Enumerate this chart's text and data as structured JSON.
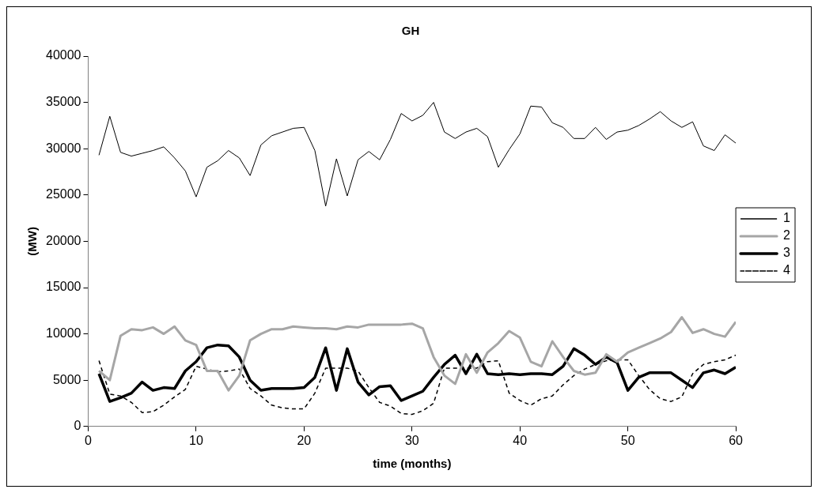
{
  "chart_data": {
    "type": "line",
    "title": "GH",
    "xlabel": "time (months)",
    "ylabel": "(MW)",
    "x": [
      1,
      2,
      3,
      4,
      5,
      6,
      7,
      8,
      9,
      10,
      11,
      12,
      13,
      14,
      15,
      16,
      17,
      18,
      19,
      20,
      21,
      22,
      23,
      24,
      25,
      26,
      27,
      28,
      29,
      30,
      31,
      32,
      33,
      34,
      35,
      36,
      37,
      38,
      39,
      40,
      41,
      42,
      43,
      44,
      45,
      46,
      47,
      48,
      49,
      50,
      51,
      52,
      53,
      54,
      55,
      56,
      57,
      58,
      59,
      60
    ],
    "xlim": [
      0,
      60
    ],
    "xticks": [
      0,
      10,
      20,
      30,
      40,
      50,
      60
    ],
    "ylim": [
      0,
      40000
    ],
    "yticks": [
      0,
      5000,
      10000,
      15000,
      20000,
      25000,
      30000,
      35000,
      40000
    ],
    "grid": false,
    "legend": "right",
    "marker": "none",
    "series": [
      {
        "name": "1",
        "color": "#000000",
        "line_style": "solid",
        "values": [
          29300,
          33500,
          29600,
          29200,
          29500,
          29800,
          30200,
          29000,
          27600,
          24800,
          28000,
          28700,
          29800,
          29000,
          27100,
          30400,
          31400,
          31800,
          32200,
          32300,
          29800,
          23800,
          28900,
          24900,
          28800,
          29700,
          28800,
          31000,
          33800,
          33000,
          33600,
          35000,
          31800,
          31100,
          31800,
          32200,
          31300,
          28000,
          29900,
          31600,
          34600,
          34500,
          32800,
          32300,
          31100,
          31100,
          32300,
          31000,
          31800,
          32000,
          32500,
          33200,
          34000,
          33000,
          32300,
          32900,
          30300,
          29800,
          31500,
          30600
        ]
      },
      {
        "name": "2",
        "color": "#a6a6a6",
        "line_style": "solid",
        "values": [
          6000,
          5000,
          9800,
          10500,
          10400,
          10700,
          10000,
          10800,
          9300,
          8800,
          6000,
          6000,
          3900,
          5500,
          9300,
          10000,
          10500,
          10500,
          10800,
          10700,
          10600,
          10600,
          10500,
          10800,
          10700,
          11000,
          11000,
          11000,
          11000,
          11100,
          10600,
          7500,
          5500,
          4600,
          7800,
          5800,
          8000,
          9000,
          10300,
          9600,
          7000,
          6500,
          9200,
          7500,
          6000,
          5600,
          5800,
          7800,
          7000,
          8000,
          8500,
          9000,
          9500,
          10200,
          11800,
          10100,
          10500,
          10000,
          9700,
          11300
        ]
      },
      {
        "name": "3",
        "color": "#000000",
        "line_style": "solid",
        "values": [
          5700,
          2700,
          3100,
          3600,
          4800,
          3900,
          4200,
          4100,
          6000,
          7000,
          8500,
          8800,
          8700,
          7500,
          5000,
          3900,
          4100,
          4100,
          4100,
          4200,
          5300,
          8500,
          3900,
          8400,
          4800,
          3400,
          4300,
          4400,
          2800,
          3300,
          3800,
          5300,
          6700,
          7700,
          5700,
          7800,
          5700,
          5600,
          5700,
          5600,
          5700,
          5700,
          5600,
          6500,
          8400,
          7700,
          6700,
          7500,
          6900,
          3900,
          5300,
          5800,
          5800,
          5800,
          5000,
          4200,
          5800,
          6100,
          5700,
          6400
        ]
      },
      {
        "name": "4",
        "color": "#000000",
        "line_style": "dashed",
        "values": [
          7100,
          3500,
          3300,
          2600,
          1500,
          1600,
          2300,
          3200,
          4000,
          6500,
          6200,
          5900,
          6000,
          6200,
          4100,
          3300,
          2300,
          2000,
          1900,
          1900,
          3600,
          6300,
          6300,
          6300,
          6000,
          4200,
          2600,
          2200,
          1400,
          1300,
          1700,
          2500,
          6300,
          6300,
          6300,
          6300,
          7000,
          7100,
          3600,
          2800,
          2300,
          3000,
          3300,
          4500,
          5500,
          6200,
          6700,
          7100,
          7200,
          7200,
          5500,
          4000,
          3000,
          2700,
          3200,
          5700,
          6700,
          7000,
          7200,
          7700
        ]
      }
    ]
  }
}
